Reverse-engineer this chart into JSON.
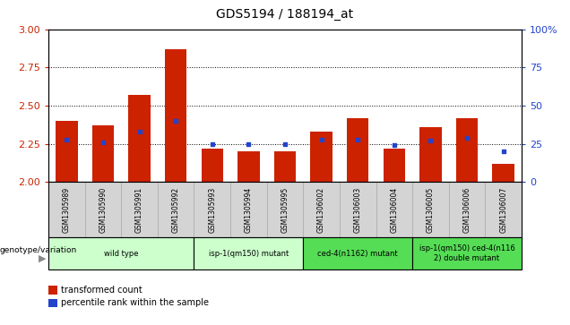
{
  "title": "GDS5194 / 188194_at",
  "samples": [
    "GSM1305989",
    "GSM1305990",
    "GSM1305991",
    "GSM1305992",
    "GSM1305993",
    "GSM1305994",
    "GSM1305995",
    "GSM1306002",
    "GSM1306003",
    "GSM1306004",
    "GSM1306005",
    "GSM1306006",
    "GSM1306007"
  ],
  "red_values": [
    2.4,
    2.37,
    2.57,
    2.87,
    2.22,
    2.2,
    2.2,
    2.33,
    2.42,
    2.22,
    2.36,
    2.42,
    2.12
  ],
  "blue_values": [
    28,
    26,
    33,
    40,
    25,
    25,
    25,
    28,
    28,
    24,
    27,
    29,
    20
  ],
  "ylim_left": [
    2.0,
    3.0
  ],
  "ylim_right": [
    0,
    100
  ],
  "yticks_left": [
    2.0,
    2.25,
    2.5,
    2.75,
    3.0
  ],
  "yticks_right": [
    0,
    25,
    50,
    75,
    100
  ],
  "grid_values": [
    2.25,
    2.5,
    2.75
  ],
  "groups": [
    {
      "label": "wild type",
      "indices": [
        0,
        1,
        2,
        3
      ],
      "color": "#ccffcc"
    },
    {
      "label": "isp-1(qm150) mutant",
      "indices": [
        4,
        5,
        6
      ],
      "color": "#ccffcc"
    },
    {
      "label": "ced-4(n1162) mutant",
      "indices": [
        7,
        8,
        9
      ],
      "color": "#55dd55"
    },
    {
      "label": "isp-1(qm150) ced-4(n116\n2) double mutant",
      "indices": [
        10,
        11,
        12
      ],
      "color": "#55dd55"
    }
  ],
  "bar_color_red": "#cc2200",
  "bar_color_blue": "#2244cc",
  "bar_width": 0.6,
  "ylabel_left_color": "#cc2200",
  "ylabel_right_color": "#2244cc",
  "legend_items": [
    "transformed count",
    "percentile rank within the sample"
  ],
  "col_bg_color": "#d4d4d4",
  "col_border_color": "#aaaaaa"
}
